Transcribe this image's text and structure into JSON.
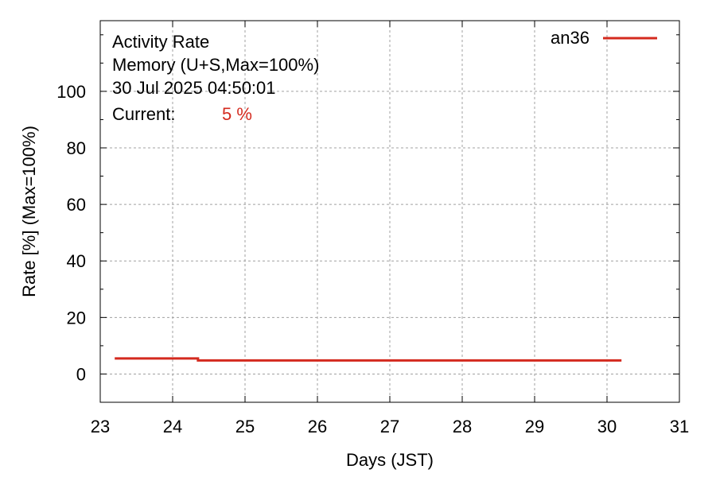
{
  "chart_data": {
    "type": "line",
    "title_lines": [
      "Activity Rate",
      "Memory (U+S,Max=100%)",
      "30 Jul 2025 04:50:01"
    ],
    "current_label": "Current:",
    "current_value": "5 %",
    "xlabel": "Days (JST)",
    "ylabel": "Rate [%]  (Max=100%)",
    "xlim": [
      23,
      31
    ],
    "ylim": [
      -10,
      125
    ],
    "x_ticks": [
      23,
      24,
      25,
      26,
      27,
      28,
      29,
      30,
      31
    ],
    "x_tick_labels": [
      "23",
      "24",
      "25",
      "26",
      "27",
      "28",
      "29",
      "30",
      "31"
    ],
    "y_ticks": [
      0,
      20,
      40,
      60,
      80,
      100
    ],
    "y_tick_labels": [
      "0",
      "20",
      "40",
      "60",
      "80",
      "100"
    ],
    "grid": true,
    "legend_position": "top-right",
    "series": [
      {
        "name": "an36",
        "color": "#d42a1e",
        "points": [
          [
            23.2,
            5.5
          ],
          [
            24.35,
            5.5
          ],
          [
            24.35,
            4.8
          ],
          [
            30.2,
            4.8
          ]
        ]
      }
    ]
  }
}
